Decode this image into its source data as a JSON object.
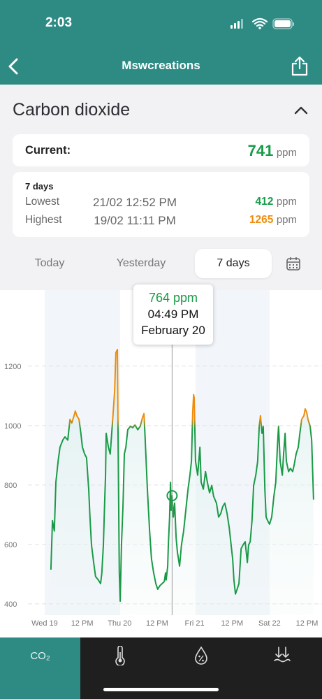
{
  "status_bar": {
    "time": "2:03"
  },
  "header": {
    "title": "Mswcreations"
  },
  "section": {
    "title": "Carbon dioxide"
  },
  "current": {
    "label": "Current:",
    "value": 741,
    "unit": "ppm",
    "color": "#179c4a"
  },
  "stats": {
    "period": "7 days",
    "rows": [
      {
        "label": "Lowest",
        "time": "21/02 12:52 PM",
        "value": 412,
        "unit": "ppm",
        "color": "#179c4a"
      },
      {
        "label": "Highest",
        "time": "19/02 11:11 PM",
        "value": 1265,
        "unit": "ppm",
        "color": "#ef8c0c"
      }
    ]
  },
  "tabs": {
    "items": [
      "Today",
      "Yesterday",
      "7 days"
    ],
    "selected": 2
  },
  "tab_bar": {
    "label": "CO₂"
  },
  "chart_data": {
    "type": "line",
    "x": [
      2.0,
      2.5,
      3.1,
      3.6,
      4.3,
      4.9,
      5.8,
      6.5,
      7.4,
      8.1,
      8.7,
      9.4,
      9.8,
      10.3,
      11.0,
      11.6,
      12.1,
      12.8,
      13.4,
      14.1,
      14.5,
      15.0,
      15.7,
      16.3,
      17.2,
      17.9,
      18.3,
      18.8,
      19.2,
      19.5,
      19.7,
      20.4,
      21.0,
      21.7,
      22.4,
      22.8,
      23.3,
      23.5,
      23.9,
      24.2,
      24.6,
      25.1,
      25.5,
      26.0,
      26.6,
      27.5,
      28.2,
      28.9,
      29.8,
      30.6,
      31.3,
      31.8,
      32.0,
      32.4,
      32.9,
      33.6,
      34.2,
      34.9,
      35.6,
      36.2,
      36.9,
      37.6,
      38.3,
      38.7,
      38.9,
      39.4,
      39.6,
      39.8,
      40.0,
      40.3,
      40.5,
      40.8,
      41.2,
      41.6,
      42.1,
      42.5,
      43.2,
      43.8,
      44.5,
      45.2,
      45.9,
      46.5,
      47.0,
      47.4,
      47.7,
      47.9,
      48.3,
      49.0,
      49.7,
      50.1,
      50.8,
      51.5,
      52.1,
      52.8,
      53.5,
      54.1,
      55.0,
      55.7,
      56.4,
      57.0,
      57.7,
      58.4,
      59.1,
      59.7,
      60.2,
      60.6,
      61.1,
      61.5,
      62.2,
      62.9,
      63.5,
      64.2,
      64.9,
      65.3,
      65.8,
      66.4,
      66.9,
      67.6,
      68.2,
      68.7,
      69.1,
      69.6,
      70.0,
      70.5,
      70.9,
      71.4,
      72.0,
      72.7,
      73.4,
      74.0,
      74.5,
      74.9,
      75.4,
      76.1,
      76.5,
      77.0,
      77.4,
      78.1,
      78.7,
      79.4,
      79.9,
      80.5,
      81.2,
      81.7,
      82.3,
      83.0,
      83.4,
      83.9,
      84.3,
      85.0,
      85.5,
      86.1
    ],
    "values": [
      515,
      680,
      645,
      809,
      880,
      927,
      951,
      962,
      951,
      1021,
      1009,
      1033,
      1049,
      1033,
      1021,
      974,
      927,
      904,
      892,
      786,
      692,
      598,
      539,
      492,
      480,
      468,
      504,
      598,
      739,
      833,
      974,
      927,
      904,
      1009,
      1115,
      1245,
      1256,
      974,
      504,
      409,
      598,
      739,
      904,
      927,
      986,
      998,
      993,
      1002,
      986,
      998,
      1026,
      1040,
      998,
      904,
      786,
      645,
      551,
      504,
      468,
      449,
      461,
      468,
      475,
      504,
      480,
      527,
      598,
      645,
      692,
      809,
      715,
      764,
      692,
      739,
      621,
      574,
      527,
      598,
      645,
      715,
      786,
      833,
      880,
      1045,
      1104,
      1092,
      880,
      833,
      927,
      809,
      786,
      845,
      809,
      774,
      798,
      762,
      739,
      692,
      704,
      727,
      739,
      704,
      656,
      598,
      551,
      480,
      433,
      445,
      468,
      586,
      598,
      609,
      539,
      598,
      609,
      680,
      798,
      833,
      880,
      998,
      1033,
      974,
      998,
      786,
      692,
      680,
      668,
      692,
      762,
      809,
      927,
      998,
      880,
      833,
      904,
      974,
      880,
      845,
      856,
      845,
      868,
      904,
      927,
      974,
      1021,
      1033,
      1056,
      1045,
      1021,
      998,
      951,
      751
    ],
    "color": "#1a9a47",
    "color_above": {
      "value": 1000,
      "color": "#ef8c0c"
    },
    "xlim": [
      -14.3,
      88.8
    ],
    "xticks": [
      {
        "value": 0,
        "label": "Wed 19"
      },
      {
        "value": 12,
        "label": "12 PM"
      },
      {
        "value": 24,
        "label": "Thu 20"
      },
      {
        "value": 36,
        "label": "12 PM"
      },
      {
        "value": 48,
        "label": "Fri 21"
      },
      {
        "value": 60,
        "label": "12 PM"
      },
      {
        "value": 72,
        "label": "Sat 22"
      },
      {
        "value": 84,
        "label": "12 PM"
      }
    ],
    "ylim": [
      362,
      1456
    ],
    "yticks": [
      400,
      600,
      800,
      1000,
      1200
    ],
    "grid": true,
    "tooltip": {
      "x": 40.8,
      "value": 764,
      "value_label": "764 ppm",
      "time": "04:49 PM",
      "date": "February 20"
    }
  }
}
